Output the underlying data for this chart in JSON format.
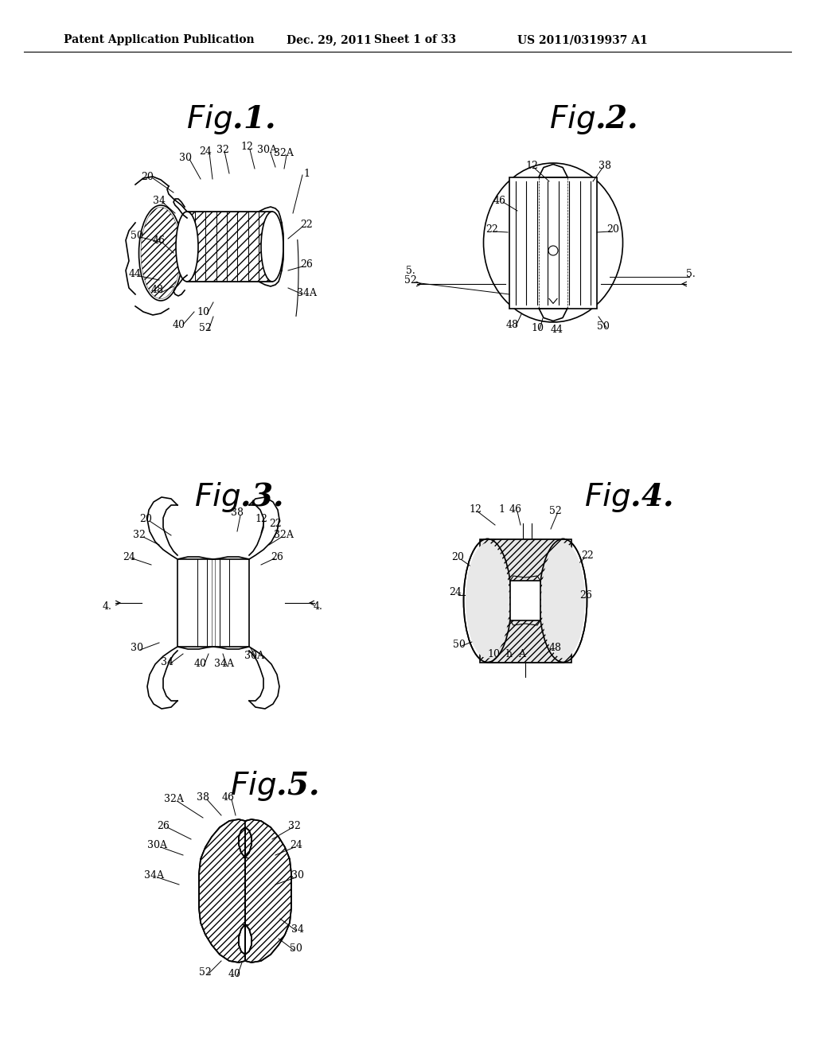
{
  "background_color": "#ffffff",
  "header_text": "Patent Application Publication",
  "header_date": "Dec. 29, 2011",
  "header_sheet": "Sheet 1 of 33",
  "header_patent": "US 2011/0319937 A1",
  "header_fontsize": 10,
  "ref_num_fontsize": 9,
  "line_color": "#000000",
  "line_width": 1.2
}
